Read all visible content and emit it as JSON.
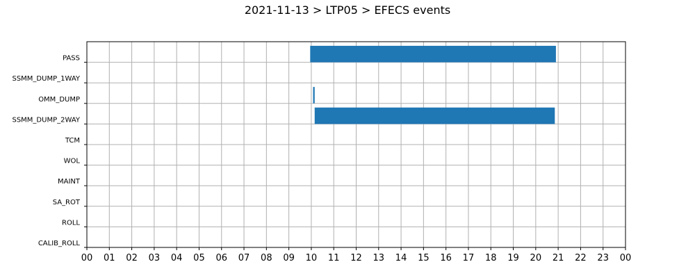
{
  "chart_data": {
    "type": "gantt",
    "title": "2021-11-13 > LTP05 > EFECS events",
    "xlabel": "",
    "ylabel": "",
    "x_unit": "hour",
    "xlim": [
      0,
      24
    ],
    "x_ticks": [
      "00",
      "01",
      "02",
      "03",
      "04",
      "05",
      "06",
      "07",
      "08",
      "09",
      "10",
      "11",
      "12",
      "13",
      "14",
      "15",
      "16",
      "17",
      "18",
      "19",
      "20",
      "21",
      "22",
      "23",
      "00"
    ],
    "categories": [
      "PASS",
      "SSMM_DUMP_1WAY",
      "OMM_DUMP",
      "SSMM_DUMP_2WAY",
      "TCM",
      "WOL",
      "MAINT",
      "SA_ROT",
      "ROLL",
      "CALIB_ROLL"
    ],
    "grid": true,
    "bar_color": "#1f77b4",
    "events": [
      {
        "category": "PASS",
        "start": 9.95,
        "end": 20.9
      },
      {
        "category": "OMM_DUMP",
        "start": 10.08,
        "end": 10.15
      },
      {
        "category": "SSMM_DUMP_2WAY",
        "start": 10.15,
        "end": 20.85
      }
    ]
  }
}
